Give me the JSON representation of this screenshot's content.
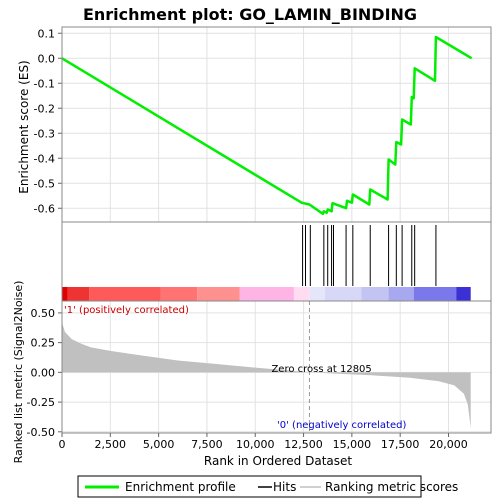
{
  "chart_data": {
    "type": "line",
    "title": "Enrichment plot: GO_LAMIN_BINDING",
    "top_panel": {
      "ylabel": "Enrichment score (ES)",
      "ylim": [
        -0.655,
        0.125
      ],
      "yticks": [
        0.1,
        0.0,
        -0.1,
        -0.2,
        -0.3,
        -0.4,
        -0.5,
        -0.6
      ],
      "ytick_labels": [
        "0.1",
        "0.0",
        "-0.1",
        "-0.2",
        "-0.3",
        "-0.4",
        "-0.5",
        "-0.6"
      ],
      "grid": true,
      "series": [
        {
          "name": "Enrichment profile",
          "color": "#00ee00",
          "points": [
            [
              0,
              0.0
            ],
            [
              12400,
              -0.578
            ],
            [
              12800,
              -0.585
            ],
            [
              13500,
              -0.622
            ],
            [
              13550,
              -0.612
            ],
            [
              13700,
              -0.618
            ],
            [
              13750,
              -0.605
            ],
            [
              13950,
              -0.612
            ],
            [
              14000,
              -0.58
            ],
            [
              14700,
              -0.6
            ],
            [
              14750,
              -0.57
            ],
            [
              15000,
              -0.578
            ],
            [
              15050,
              -0.545
            ],
            [
              15900,
              -0.585
            ],
            [
              15950,
              -0.525
            ],
            [
              16850,
              -0.565
            ],
            [
              16900,
              -0.405
            ],
            [
              17250,
              -0.425
            ],
            [
              17300,
              -0.335
            ],
            [
              17550,
              -0.345
            ],
            [
              17600,
              -0.245
            ],
            [
              18050,
              -0.265
            ],
            [
              18100,
              -0.155
            ],
            [
              18200,
              -0.16
            ],
            [
              18250,
              -0.04
            ],
            [
              19300,
              -0.09
            ],
            [
              19350,
              0.085
            ],
            [
              21200,
              0.0
            ]
          ]
        }
      ]
    },
    "hits_panel": {
      "hit_ranks": [
        12450,
        12600,
        12850,
        13550,
        13750,
        13950,
        14050,
        14700,
        15050,
        15950,
        16900,
        17300,
        17600,
        18100,
        18250,
        19350
      ]
    },
    "bottom_panel": {
      "ylabel": "Ranked list metric (Signal2Noise)",
      "ylim": [
        -0.51,
        0.6
      ],
      "yticks": [
        0.5,
        0.25,
        0.0,
        -0.25,
        -0.5
      ],
      "ytick_labels": [
        "0.50",
        "0.25",
        "0.00",
        "-0.25",
        "-0.50"
      ],
      "fill_color": "#c0c0c0",
      "metric_points": [
        [
          0,
          0.42
        ],
        [
          150,
          0.34
        ],
        [
          500,
          0.28
        ],
        [
          1000,
          0.24
        ],
        [
          1500,
          0.21
        ],
        [
          2500,
          0.18
        ],
        [
          4000,
          0.145
        ],
        [
          6000,
          0.1
        ],
        [
          8000,
          0.07
        ],
        [
          10000,
          0.04
        ],
        [
          12000,
          0.012
        ],
        [
          12805,
          0.0
        ],
        [
          14000,
          -0.01
        ],
        [
          16000,
          -0.025
        ],
        [
          18000,
          -0.045
        ],
        [
          19500,
          -0.075
        ],
        [
          20300,
          -0.11
        ],
        [
          20800,
          -0.18
        ],
        [
          21000,
          -0.27
        ],
        [
          21100,
          -0.4
        ],
        [
          21150,
          -0.47
        ]
      ],
      "positive_label": "'1' (positively correlated)",
      "negative_label": "'0' (negatively correlated)",
      "zero_cross_label": "Zero cross at 12805",
      "zero_cross": 12805
    },
    "xlabel": "Rank in Ordered Dataset",
    "xlim": [
      0,
      22200
    ],
    "xticks": [
      0,
      2500,
      5000,
      7500,
      10000,
      12500,
      15000,
      17500,
      20000
    ],
    "xtick_labels": [
      "0",
      "2,500",
      "5,000",
      "7,500",
      "10,000",
      "12,500",
      "15,000",
      "17,500",
      "20,000"
    ],
    "n_genes": 21150,
    "color_bar": [
      {
        "from": 0,
        "to": 300,
        "color": "#e00000"
      },
      {
        "from": 300,
        "to": 1400,
        "color": "#ee3333"
      },
      {
        "from": 1400,
        "to": 5100,
        "color": "#ff5a5a"
      },
      {
        "from": 5100,
        "to": 7000,
        "color": "#ff7373"
      },
      {
        "from": 7000,
        "to": 9200,
        "color": "#ff9090"
      },
      {
        "from": 9200,
        "to": 12000,
        "color": "#ffb4e6"
      },
      {
        "from": 12000,
        "to": 12800,
        "color": "#ffdcf2"
      },
      {
        "from": 12800,
        "to": 13600,
        "color": "#e6e6fa"
      },
      {
        "from": 13600,
        "to": 15500,
        "color": "#d7d7f8"
      },
      {
        "from": 15500,
        "to": 16900,
        "color": "#c4c4f2"
      },
      {
        "from": 16900,
        "to": 18200,
        "color": "#a8a8f0"
      },
      {
        "from": 18200,
        "to": 20400,
        "color": "#7a78ea"
      },
      {
        "from": 20400,
        "to": 21150,
        "color": "#3b2fd6"
      }
    ],
    "legend": {
      "position": "bottom",
      "items": [
        {
          "label": "Enrichment profile",
          "color": "#00ee00",
          "kind": "line"
        },
        {
          "label": "Hits",
          "color": "#000000",
          "kind": "line"
        },
        {
          "label": "Ranking metric scores",
          "color": "#c0c0c0",
          "kind": "line"
        }
      ]
    }
  }
}
